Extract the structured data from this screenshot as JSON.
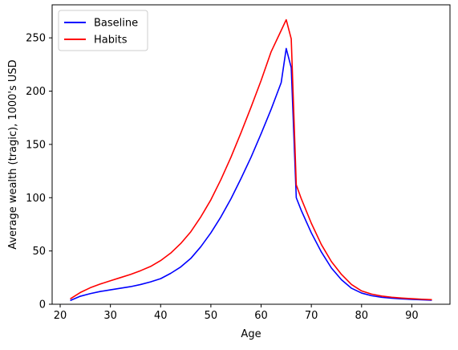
{
  "chart_data": {
    "type": "line",
    "title": "",
    "xlabel": "Age",
    "ylabel": "Average wealth (tragic), 1000's USD",
    "xlim": [
      18.4,
      97.6
    ],
    "ylim": [
      0,
      281
    ],
    "xticks": [
      20,
      30,
      40,
      50,
      60,
      70,
      80,
      90
    ],
    "yticks": [
      0,
      50,
      100,
      150,
      200,
      250
    ],
    "grid": false,
    "legend_position": "top-left",
    "series": [
      {
        "name": "Baseline",
        "color": "#0000ff",
        "x": [
          22,
          24,
          26,
          28,
          30,
          32,
          34,
          36,
          38,
          40,
          42,
          44,
          46,
          48,
          50,
          52,
          54,
          56,
          58,
          60,
          62,
          64,
          65,
          66,
          67,
          68,
          70,
          72,
          74,
          76,
          78,
          80,
          82,
          84,
          86,
          88,
          90,
          92,
          94
        ],
        "y": [
          3.5,
          7.5,
          10,
          12,
          13.5,
          15,
          16.5,
          18.5,
          21,
          24,
          29,
          35,
          43,
          54,
          67,
          82,
          99,
          118,
          138,
          160,
          183,
          208,
          240,
          222,
          100,
          88,
          67,
          49,
          34,
          23,
          15,
          10.5,
          8,
          6.5,
          5.7,
          5,
          4.6,
          4.2,
          3.8
        ]
      },
      {
        "name": "Habits",
        "color": "#ff0000",
        "x": [
          22,
          24,
          26,
          28,
          30,
          32,
          34,
          36,
          38,
          40,
          42,
          44,
          46,
          48,
          50,
          52,
          54,
          56,
          58,
          60,
          62,
          64,
          65,
          66,
          67,
          68,
          70,
          72,
          74,
          76,
          78,
          80,
          82,
          84,
          86,
          88,
          90,
          92,
          94
        ],
        "y": [
          5,
          11,
          15.5,
          19,
          22,
          25,
          28,
          31.5,
          35.5,
          41,
          48,
          57,
          68,
          82,
          98,
          117,
          138,
          161,
          185,
          210,
          237,
          257,
          267,
          249,
          112,
          99,
          76,
          56,
          40,
          28,
          18.5,
          12.5,
          9.5,
          7.7,
          6.6,
          5.8,
          5.2,
          4.7,
          4.3
        ]
      }
    ]
  }
}
